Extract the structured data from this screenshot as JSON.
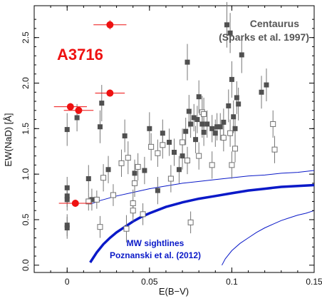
{
  "chart_data": {
    "type": "scatter",
    "xlabel": "E(B−V)",
    "ylabel": "EW(NaD) [Å]",
    "xlim": [
      -0.02,
      0.15
    ],
    "ylim": [
      -0.08,
      2.85
    ],
    "x_ticks": [
      "0",
      "0.05",
      "0.1",
      "0.15"
    ],
    "x_tick_values": [
      0,
      0.05,
      0.1,
      0.15
    ],
    "y_ticks": [
      "0.0",
      "0.5",
      "1.0",
      "1.5",
      "2.0",
      "2.5"
    ],
    "y_tick_values": [
      0,
      0.5,
      1.0,
      1.5,
      2.0,
      2.5
    ],
    "annotations": {
      "a3716": "A3716",
      "centaurus_line1": "Centaurus",
      "centaurus_line2": "(Sparks et al. 1997)",
      "mw_line1": "MW sightlines",
      "mw_line2": "Poznanski et al. (2012)"
    },
    "colors": {
      "a3716": "#ee1111",
      "filled": "#505050",
      "open": "#707070",
      "mw": "#0a19c8",
      "errbar": "#777777"
    },
    "series_a3716": {
      "points": [
        {
          "x": 0.026,
          "y": 2.64,
          "xerr": 0.01,
          "yerr": 0.05
        },
        {
          "x": 0.002,
          "y": 1.74,
          "xerr": 0.01,
          "yerr": 0.04
        },
        {
          "x": 0.007,
          "y": 1.7,
          "xerr": 0.009,
          "yerr": 0.04
        },
        {
          "x": 0.026,
          "y": 1.89,
          "xerr": 0.009,
          "yerr": 0.04
        },
        {
          "x": 0.005,
          "y": 0.68,
          "xerr": 0.01,
          "yerr": 0.04
        }
      ]
    },
    "series_centaurus_filled": {
      "points": [
        {
          "x": 0.0,
          "y": 1.49,
          "yerr": 0.18
        },
        {
          "x": 0.0,
          "y": 0.85,
          "yerr": 0.12
        },
        {
          "x": 0.0,
          "y": 0.76,
          "yerr": 0.12
        },
        {
          "x": 0.0,
          "y": 0.72,
          "yerr": 0.12
        },
        {
          "x": 0.0,
          "y": 0.44,
          "yerr": 0.12
        },
        {
          "x": 0.0,
          "y": 0.41,
          "yerr": 0.12
        },
        {
          "x": 0.006,
          "y": 1.62,
          "yerr": 0.15
        },
        {
          "x": 0.013,
          "y": 0.95,
          "yerr": 0.15
        },
        {
          "x": 0.015,
          "y": 0.72,
          "yerr": 0.12
        },
        {
          "x": 0.02,
          "y": 1.52,
          "yerr": 0.18
        },
        {
          "x": 0.021,
          "y": 1.78,
          "yerr": 0.2
        },
        {
          "x": 0.025,
          "y": 1.05,
          "yerr": 0.15
        },
        {
          "x": 0.035,
          "y": 1.42,
          "yerr": 0.18
        },
        {
          "x": 0.041,
          "y": 1.01,
          "yerr": 0.15
        },
        {
          "x": 0.047,
          "y": 1.04,
          "yerr": 0.15
        },
        {
          "x": 0.05,
          "y": 1.5,
          "yerr": 0.18
        },
        {
          "x": 0.055,
          "y": 0.82,
          "yerr": 0.15
        },
        {
          "x": 0.058,
          "y": 1.45,
          "yerr": 0.15
        },
        {
          "x": 0.062,
          "y": 1.35,
          "yerr": 0.15
        },
        {
          "x": 0.065,
          "y": 1.24,
          "yerr": 0.15
        },
        {
          "x": 0.068,
          "y": 1.05,
          "yerr": 0.15
        },
        {
          "x": 0.07,
          "y": 1.2,
          "yerr": 0.15
        },
        {
          "x": 0.072,
          "y": 1.47,
          "yerr": 0.15
        },
        {
          "x": 0.073,
          "y": 2.23,
          "yerr": 0.2
        },
        {
          "x": 0.074,
          "y": 1.69,
          "yerr": 0.18
        },
        {
          "x": 0.075,
          "y": 1.55,
          "yerr": 0.15
        },
        {
          "x": 0.077,
          "y": 1.62,
          "yerr": 0.15
        },
        {
          "x": 0.078,
          "y": 1.38,
          "yerr": 0.15
        },
        {
          "x": 0.079,
          "y": 1.6,
          "yerr": 0.15
        },
        {
          "x": 0.08,
          "y": 1.85,
          "yerr": 0.18
        },
        {
          "x": 0.082,
          "y": 1.55,
          "yerr": 0.15
        },
        {
          "x": 0.083,
          "y": 1.46,
          "yerr": 0.15
        },
        {
          "x": 0.085,
          "y": 1.55,
          "yerr": 0.15
        },
        {
          "x": 0.088,
          "y": 1.5,
          "yerr": 0.15
        },
        {
          "x": 0.09,
          "y": 1.45,
          "yerr": 0.15
        },
        {
          "x": 0.091,
          "y": 1.52,
          "yerr": 0.15
        },
        {
          "x": 0.093,
          "y": 1.52,
          "yerr": 0.15
        },
        {
          "x": 0.095,
          "y": 1.57,
          "yerr": 0.15
        },
        {
          "x": 0.097,
          "y": 2.64,
          "yerr": 0.25
        },
        {
          "x": 0.098,
          "y": 1.75,
          "yerr": 0.18
        },
        {
          "x": 0.099,
          "y": 2.55,
          "yerr": 0.22
        },
        {
          "x": 0.1,
          "y": 2.04,
          "yerr": 0.2
        },
        {
          "x": 0.101,
          "y": 1.63,
          "yerr": 0.18
        },
        {
          "x": 0.102,
          "y": 1.5,
          "yerr": 0.15
        },
        {
          "x": 0.103,
          "y": 1.84,
          "yerr": 0.18
        },
        {
          "x": 0.104,
          "y": 1.77,
          "yerr": 0.18
        },
        {
          "x": 0.106,
          "y": 2.31,
          "yerr": 0.2
        },
        {
          "x": 0.118,
          "y": 1.9,
          "yerr": 0.18
        },
        {
          "x": 0.121,
          "y": 1.98,
          "yerr": 0.18
        }
      ]
    },
    "series_centaurus_open": {
      "points": [
        {
          "x": 0.013,
          "y": 0.7,
          "yerr": 0.1
        },
        {
          "x": 0.018,
          "y": 0.72,
          "yerr": 0.1
        },
        {
          "x": 0.02,
          "y": 0.42,
          "yerr": 0.12
        },
        {
          "x": 0.022,
          "y": 0.96,
          "yerr": 0.15
        },
        {
          "x": 0.028,
          "y": 0.77,
          "yerr": 0.12
        },
        {
          "x": 0.033,
          "y": 1.12,
          "yerr": 0.15
        },
        {
          "x": 0.036,
          "y": 0.4,
          "yerr": 0.15
        },
        {
          "x": 0.037,
          "y": 1.18,
          "yerr": 0.18
        },
        {
          "x": 0.04,
          "y": 0.68,
          "yerr": 0.15
        },
        {
          "x": 0.04,
          "y": 0.6,
          "yerr": 0.12
        },
        {
          "x": 0.041,
          "y": 0.9,
          "yerr": 0.15
        },
        {
          "x": 0.043,
          "y": 1.08,
          "yerr": 0.15
        },
        {
          "x": 0.046,
          "y": 0.56,
          "yerr": 0.12
        },
        {
          "x": 0.051,
          "y": 1.3,
          "yerr": 0.15
        },
        {
          "x": 0.055,
          "y": 1.23,
          "yerr": 0.15
        },
        {
          "x": 0.058,
          "y": 1.32,
          "yerr": 0.15
        },
        {
          "x": 0.063,
          "y": 0.95,
          "yerr": 0.15
        },
        {
          "x": 0.07,
          "y": 1.35,
          "yerr": 0.15
        },
        {
          "x": 0.073,
          "y": 1.15,
          "yerr": 0.15
        },
        {
          "x": 0.075,
          "y": 0.47,
          "yerr": 0.12
        },
        {
          "x": 0.08,
          "y": 1.2,
          "yerr": 0.15
        },
        {
          "x": 0.082,
          "y": 1.68,
          "yerr": 0.18
        },
        {
          "x": 0.083,
          "y": 1.66,
          "yerr": 0.18
        },
        {
          "x": 0.088,
          "y": 1.1,
          "yerr": 0.15
        },
        {
          "x": 0.095,
          "y": 1.4,
          "yerr": 0.15
        },
        {
          "x": 0.099,
          "y": 1.45,
          "yerr": 0.15
        },
        {
          "x": 0.1,
          "y": 1.1,
          "yerr": 0.15
        },
        {
          "x": 0.102,
          "y": 1.28,
          "yerr": 0.15
        },
        {
          "x": 0.125,
          "y": 1.55,
          "yerr": 0.15
        },
        {
          "x": 0.126,
          "y": 1.27,
          "yerr": 0.15
        }
      ]
    },
    "mw_curves": {
      "x": [
        0.014,
        0.018,
        0.022,
        0.026,
        0.03,
        0.035,
        0.04,
        0.045,
        0.05,
        0.06,
        0.07,
        0.08,
        0.09,
        0.1,
        0.11,
        0.12,
        0.13,
        0.14,
        0.15
      ],
      "thick": [
        0.03,
        0.14,
        0.23,
        0.3,
        0.36,
        0.42,
        0.48,
        0.53,
        0.57,
        0.64,
        0.69,
        0.73,
        0.76,
        0.79,
        0.82,
        0.84,
        0.86,
        0.87,
        0.88
      ],
      "thin_upper_x": [
        0.014,
        0.02,
        0.03,
        0.04,
        0.05,
        0.06,
        0.07,
        0.08,
        0.09,
        0.1,
        0.11,
        0.12,
        0.13,
        0.14,
        0.15
      ],
      "thin_upper_y": [
        0.67,
        0.71,
        0.76,
        0.8,
        0.84,
        0.87,
        0.9,
        0.92,
        0.94,
        0.96,
        0.98,
        0.99,
        1.01,
        1.02,
        1.04
      ],
      "thin_lower_x": [
        0.094,
        0.096,
        0.1,
        0.105,
        0.11,
        0.115,
        0.12,
        0.125,
        0.13,
        0.135,
        0.14,
        0.145,
        0.15
      ],
      "thin_lower_y": [
        0.0,
        0.07,
        0.16,
        0.24,
        0.3,
        0.36,
        0.41,
        0.45,
        0.49,
        0.52,
        0.55,
        0.57,
        0.6
      ]
    }
  }
}
